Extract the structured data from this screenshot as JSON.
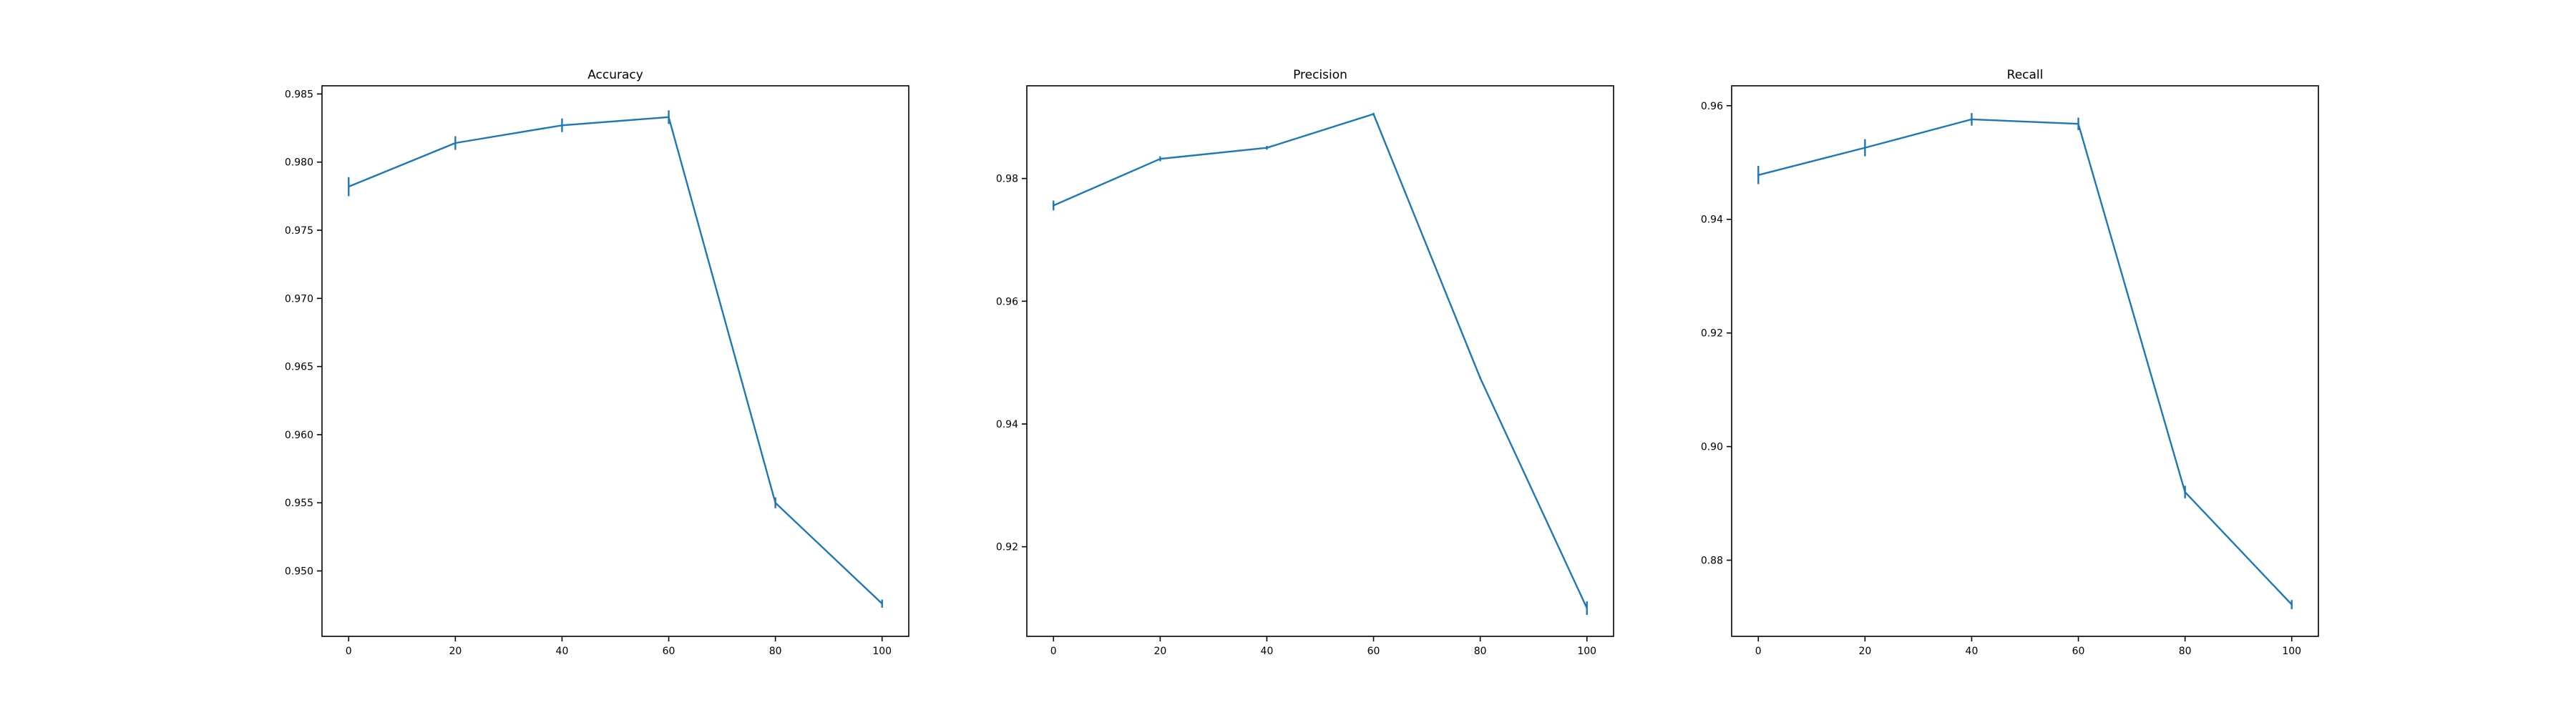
{
  "chart_data": [
    {
      "type": "line",
      "title": "Accuracy",
      "xlabel": "",
      "ylabel": "",
      "x": [
        0,
        20,
        40,
        60,
        80,
        100
      ],
      "y": [
        0.9782,
        0.9814,
        0.9827,
        0.9833,
        0.955,
        0.9476
      ],
      "yerr": [
        0.0007,
        0.0005,
        0.0005,
        0.0005,
        0.0004,
        0.0003
      ],
      "xlim": [
        -5,
        105
      ],
      "ylim": [
        0.9452,
        0.9856
      ],
      "xticks": [
        0,
        20,
        40,
        60,
        80,
        100
      ],
      "xtick_labels": [
        "0",
        "20",
        "40",
        "60",
        "80",
        "100"
      ],
      "yticks": [
        0.95,
        0.955,
        0.96,
        0.965,
        0.97,
        0.975,
        0.98,
        0.985
      ],
      "ytick_labels": [
        "0.950",
        "0.955",
        "0.960",
        "0.965",
        "0.970",
        "0.975",
        "0.980",
        "0.985"
      ],
      "grid": false,
      "color": "#1f77b4"
    },
    {
      "type": "line",
      "title": "Precision",
      "xlabel": "",
      "ylabel": "",
      "x": [
        0,
        20,
        40,
        60,
        80,
        100
      ],
      "y": [
        0.9756,
        0.9832,
        0.985,
        0.9905,
        0.9475,
        0.91
      ],
      "yerr": [
        0.0008,
        0.0004,
        0.0003,
        0.0002,
        0.0002,
        0.0011
      ],
      "xlim": [
        -5,
        105
      ],
      "ylim": [
        0.9054,
        0.9951
      ],
      "xticks": [
        0,
        20,
        40,
        60,
        80,
        100
      ],
      "xtick_labels": [
        "0",
        "20",
        "40",
        "60",
        "80",
        "100"
      ],
      "yticks": [
        0.92,
        0.94,
        0.96,
        0.98
      ],
      "ytick_labels": [
        "0.92",
        "0.94",
        "0.96",
        "0.98"
      ],
      "grid": false,
      "color": "#1f77b4"
    },
    {
      "type": "line",
      "title": "Recall",
      "xlabel": "",
      "ylabel": "",
      "x": [
        0,
        20,
        40,
        60,
        80,
        100
      ],
      "y": [
        0.9478,
        0.9526,
        0.9576,
        0.9568,
        0.892,
        0.8722
      ],
      "yerr": [
        0.0016,
        0.0015,
        0.0011,
        0.0011,
        0.0011,
        0.0008
      ],
      "xlim": [
        -5,
        105
      ],
      "ylim": [
        0.8666,
        0.9635
      ],
      "xticks": [
        0,
        20,
        40,
        60,
        80,
        100
      ],
      "xtick_labels": [
        "0",
        "20",
        "40",
        "60",
        "80",
        "100"
      ],
      "yticks": [
        0.88,
        0.9,
        0.92,
        0.94,
        0.96
      ],
      "ytick_labels": [
        "0.88",
        "0.90",
        "0.92",
        "0.94",
        "0.96"
      ],
      "grid": false,
      "color": "#1f77b4"
    }
  ]
}
